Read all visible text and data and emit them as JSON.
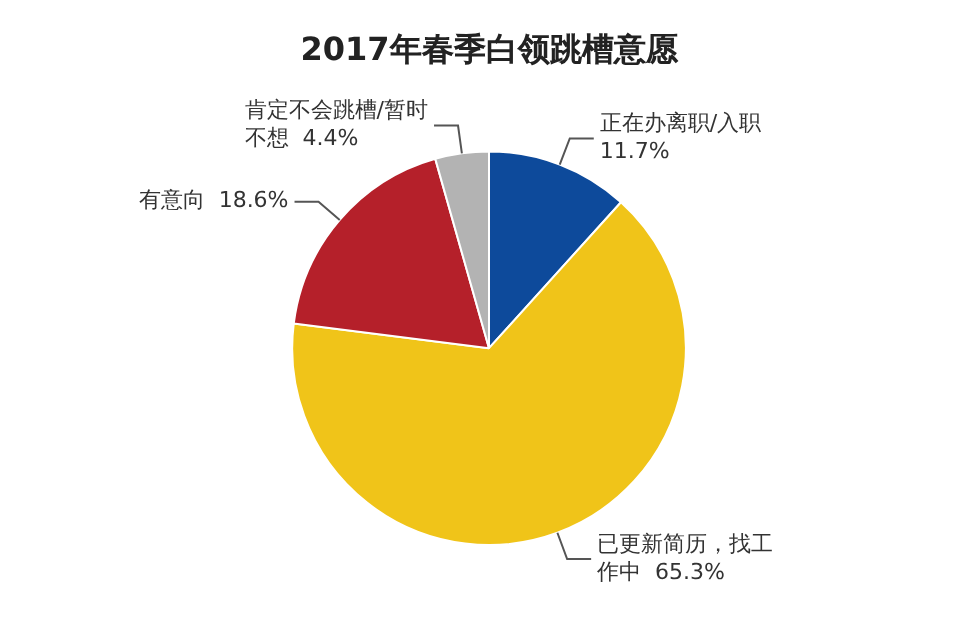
{
  "chart_data": {
    "type": "pie",
    "title": "2017年春季白领跳槽意愿",
    "categories": [
      "正在办离职/入职",
      "已更新简历，找工作中",
      "有意向",
      "肯定不会跳槽/暂时不想"
    ],
    "values": [
      11.7,
      65.3,
      18.6,
      4.4
    ],
    "value_labels": [
      "11.7%",
      "65.3%",
      "18.6%",
      "4.4%"
    ],
    "colors": [
      "#0d4a9b",
      "#f0c419",
      "#b5202a",
      "#b3b3b3"
    ],
    "legend": false
  }
}
